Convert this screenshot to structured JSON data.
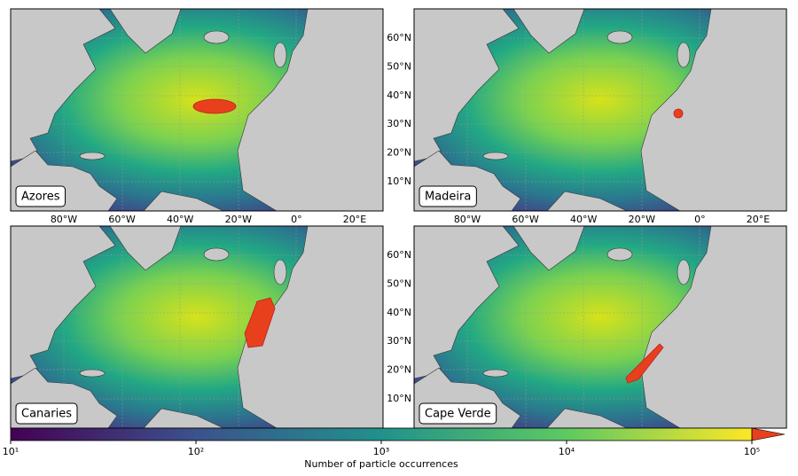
{
  "panels": [
    {
      "label": "Azores"
    },
    {
      "label": "Madeira"
    },
    {
      "label": "Canaries"
    },
    {
      "label": "Cape Verde"
    }
  ],
  "longitude_ticks": [
    "80°W",
    "60°W",
    "40°W",
    "20°W",
    "0°",
    "20°E"
  ],
  "latitude_ticks": [
    "60°N",
    "50°N",
    "40°N",
    "30°N",
    "20°N",
    "10°N"
  ],
  "colorbar": {
    "label": "Number of particle occurrences",
    "scale": "log",
    "lim": [
      10,
      100000
    ],
    "ticks": [
      {
        "value": 10,
        "label": "10¹"
      },
      {
        "value": 100,
        "label": "10²"
      },
      {
        "value": 1000,
        "label": "10³"
      },
      {
        "value": 10000,
        "label": "10⁴"
      },
      {
        "value": 100000,
        "label": "10⁵"
      }
    ]
  }
}
